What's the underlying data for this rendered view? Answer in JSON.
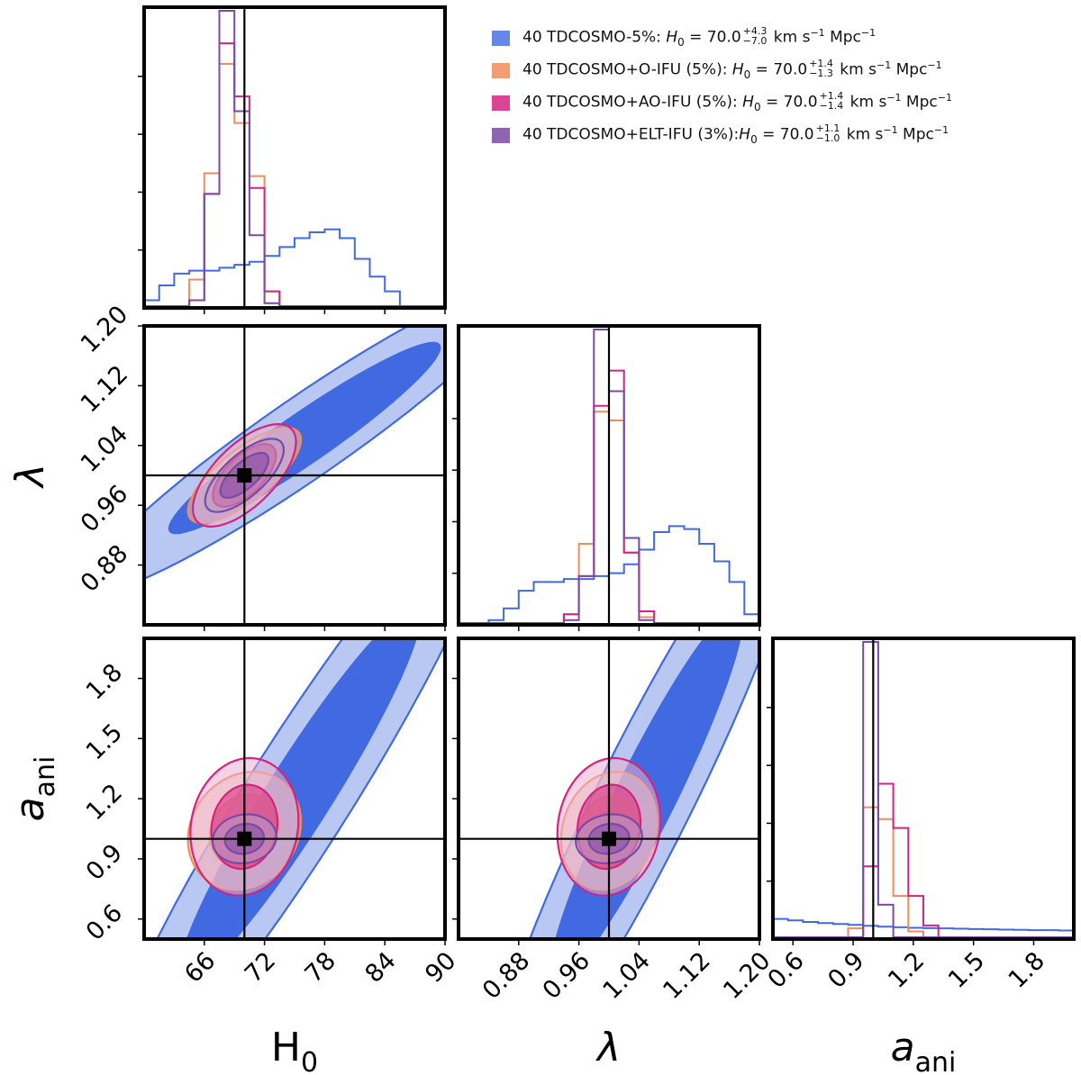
{
  "chart_data": {
    "type": "corner",
    "truth": {
      "H0": 70.0,
      "lambda": 1.0,
      "a_ani": 1.0
    },
    "parameters": [
      {
        "key": "H0",
        "label_main": "H",
        "label_sub": "0",
        "italic": false,
        "range": [
          60,
          90
        ],
        "ticks": [
          66,
          72,
          78,
          84,
          90
        ]
      },
      {
        "key": "lambda",
        "label_main": "λ",
        "label_sub": "",
        "italic": true,
        "range": [
          0.8,
          1.2
        ],
        "ticks": [
          0.88,
          0.96,
          1.04,
          1.12,
          1.2
        ]
      },
      {
        "key": "a_ani",
        "label_main": "a",
        "label_sub": "ani",
        "italic": true,
        "range": [
          0.5,
          2.0
        ],
        "ticks": [
          0.6,
          0.9,
          1.2,
          1.5,
          1.8
        ]
      }
    ],
    "series": [
      {
        "name": "40 TDCOSMO-5%",
        "color": "#4169e1",
        "light": "#b9c8f2",
        "h0": "70.0",
        "up": "+4.3",
        "down": "−7.0"
      },
      {
        "name": "40 TDCOSMO+O-IFU (5%)",
        "color": "#f28c5a",
        "light": "#f7c9ae",
        "h0": "70.0",
        "up": "+1.4",
        "down": "−1.3"
      },
      {
        "name": "40 TDCOSMO+AO-IFU (5%)",
        "color": "#d6247e",
        "light": "#eaaed0",
        "h0": "70.0",
        "up": "+1.4",
        "down": "−1.4"
      },
      {
        "name": "40 TDCOSMO+ELT-IFU (3%)",
        "color": "#7b4aa6",
        "light": "#b59ac9",
        "h0": "70.0",
        "up": "+1.1",
        "down": "−1.0"
      }
    ],
    "legend_unit": "km s",
    "legend_unit_exp": "−1",
    "legend_unit2": " Mpc",
    "legend_symbol": "H",
    "legend_symbol_sub": "0",
    "histograms": {
      "H0": {
        "bin_edges": [
          60,
          61.5,
          63,
          64.5,
          66,
          67.5,
          69,
          70.5,
          72,
          73.5,
          75,
          76.5,
          78,
          79.5,
          81,
          82.5,
          84,
          85.5,
          87,
          88.5,
          90
        ],
        "series": [
          [
            0.02,
            0.07,
            0.11,
            0.12,
            0.12,
            0.13,
            0.14,
            0.15,
            0.17,
            0.2,
            0.23,
            0.25,
            0.26,
            0.23,
            0.16,
            0.1,
            0.05,
            0.0,
            0.0,
            0.0
          ],
          [
            0,
            0,
            0,
            0.09,
            0.45,
            0.82,
            0.62,
            0.44,
            0.05,
            0,
            0,
            0,
            0,
            0,
            0,
            0,
            0,
            0,
            0,
            0
          ],
          [
            0,
            0,
            0,
            0.02,
            0.38,
            0.89,
            0.71,
            0.4,
            0.05,
            0,
            0,
            0,
            0,
            0,
            0,
            0,
            0,
            0,
            0,
            0
          ],
          [
            0,
            0,
            0,
            0.02,
            0.38,
            1.0,
            0.66,
            0.24,
            0.01,
            0,
            0,
            0,
            0,
            0,
            0,
            0,
            0,
            0,
            0,
            0
          ]
        ]
      },
      "lambda": {
        "bin_edges": [
          0.8,
          0.82,
          0.84,
          0.86,
          0.88,
          0.9,
          0.92,
          0.94,
          0.96,
          0.98,
          1.0,
          1.02,
          1.04,
          1.06,
          1.08,
          1.1,
          1.12,
          1.14,
          1.16,
          1.18,
          1.2
        ],
        "series": [
          [
            0,
            0,
            0.01,
            0.05,
            0.11,
            0.14,
            0.14,
            0.15,
            0.15,
            0.16,
            0.17,
            0.2,
            0.25,
            0.31,
            0.33,
            0.32,
            0.27,
            0.21,
            0.14,
            0.03
          ],
          [
            0,
            0,
            0,
            0,
            0,
            0,
            0,
            0.03,
            0.27,
            0.72,
            0.69,
            0.24,
            0.02,
            0,
            0,
            0,
            0,
            0,
            0,
            0
          ],
          [
            0,
            0,
            0,
            0,
            0,
            0,
            0,
            0.03,
            0.16,
            0.74,
            0.86,
            0.24,
            0.04,
            0,
            0,
            0,
            0,
            0,
            0,
            0
          ],
          [
            0,
            0,
            0,
            0,
            0,
            0,
            0,
            0.01,
            0.16,
            1.0,
            0.79,
            0.29,
            0.01,
            0,
            0,
            0,
            0,
            0,
            0,
            0
          ]
        ]
      },
      "a_ani": {
        "bin_edges": [
          0.5,
          0.575,
          0.65,
          0.725,
          0.8,
          0.875,
          0.95,
          1.025,
          1.1,
          1.175,
          1.25,
          1.325,
          1.4,
          1.475,
          1.55,
          1.625,
          1.7,
          1.775,
          1.85,
          1.925,
          2.0
        ],
        "series": [
          [
            0.062,
            0.057,
            0.052,
            0.048,
            0.045,
            0.042,
            0.039,
            0.036,
            0.034,
            0.032,
            0.031,
            0.03,
            0.029,
            0.028,
            0.027,
            0.026,
            0.025,
            0.024,
            0.024,
            0.023
          ],
          [
            0,
            0,
            0,
            0,
            0,
            0.03,
            0.44,
            0.4,
            0.14,
            0.02,
            0,
            0,
            0,
            0,
            0,
            0,
            0,
            0,
            0,
            0
          ],
          [
            0,
            0,
            0,
            0,
            0,
            0,
            0.24,
            0.52,
            0.37,
            0.14,
            0.04,
            0,
            0,
            0,
            0,
            0,
            0,
            0,
            0,
            0
          ],
          [
            0,
            0,
            0,
            0,
            0,
            0,
            1.0,
            0.11,
            0,
            0,
            0,
            0,
            0,
            0,
            0,
            0,
            0,
            0,
            0,
            0
          ]
        ]
      }
    },
    "contours": {
      "H0_lambda": [
        {
          "series": 0,
          "mean": [
            76.0,
            1.05
          ],
          "sd": [
            9.0,
            0.085
          ],
          "rho": 0.95
        },
        {
          "series": 1,
          "mean": [
            70.0,
            1.0
          ],
          "sd": [
            2.3,
            0.026
          ],
          "rho": 0.75
        },
        {
          "series": 2,
          "mean": [
            70.0,
            1.0
          ],
          "sd": [
            2.1,
            0.028
          ],
          "rho": 0.65
        },
        {
          "series": 3,
          "mean": [
            70.0,
            1.0
          ],
          "sd": [
            1.6,
            0.02
          ],
          "rho": 0.7
        }
      ],
      "H0_a_ani": [
        {
          "series": 0,
          "mean": [
            75.5,
            1.22
          ],
          "sd": [
            8.0,
            0.62
          ],
          "rho": 0.95
        },
        {
          "series": 1,
          "mean": [
            70.0,
            1.04
          ],
          "sd": [
            2.3,
            0.12
          ],
          "rho": 0.15
        },
        {
          "series": 2,
          "mean": [
            70.0,
            1.06
          ],
          "sd": [
            2.2,
            0.14
          ],
          "rho": 0.1
        },
        {
          "series": 3,
          "mean": [
            70.0,
            1.0
          ],
          "sd": [
            1.3,
            0.05
          ],
          "rho": 0.1
        }
      ],
      "lambda_a_ani": [
        {
          "series": 0,
          "mean": [
            1.05,
            1.22
          ],
          "sd": [
            0.085,
            0.62
          ],
          "rho": 0.94
        },
        {
          "series": 1,
          "mean": [
            1.0,
            1.04
          ],
          "sd": [
            0.026,
            0.12
          ],
          "rho": 0.15
        },
        {
          "series": 2,
          "mean": [
            1.0,
            1.06
          ],
          "sd": [
            0.028,
            0.14
          ],
          "rho": 0.1
        },
        {
          "series": 3,
          "mean": [
            1.0,
            1.0
          ],
          "sd": [
            0.018,
            0.05
          ],
          "rho": 0.1
        }
      ]
    }
  }
}
